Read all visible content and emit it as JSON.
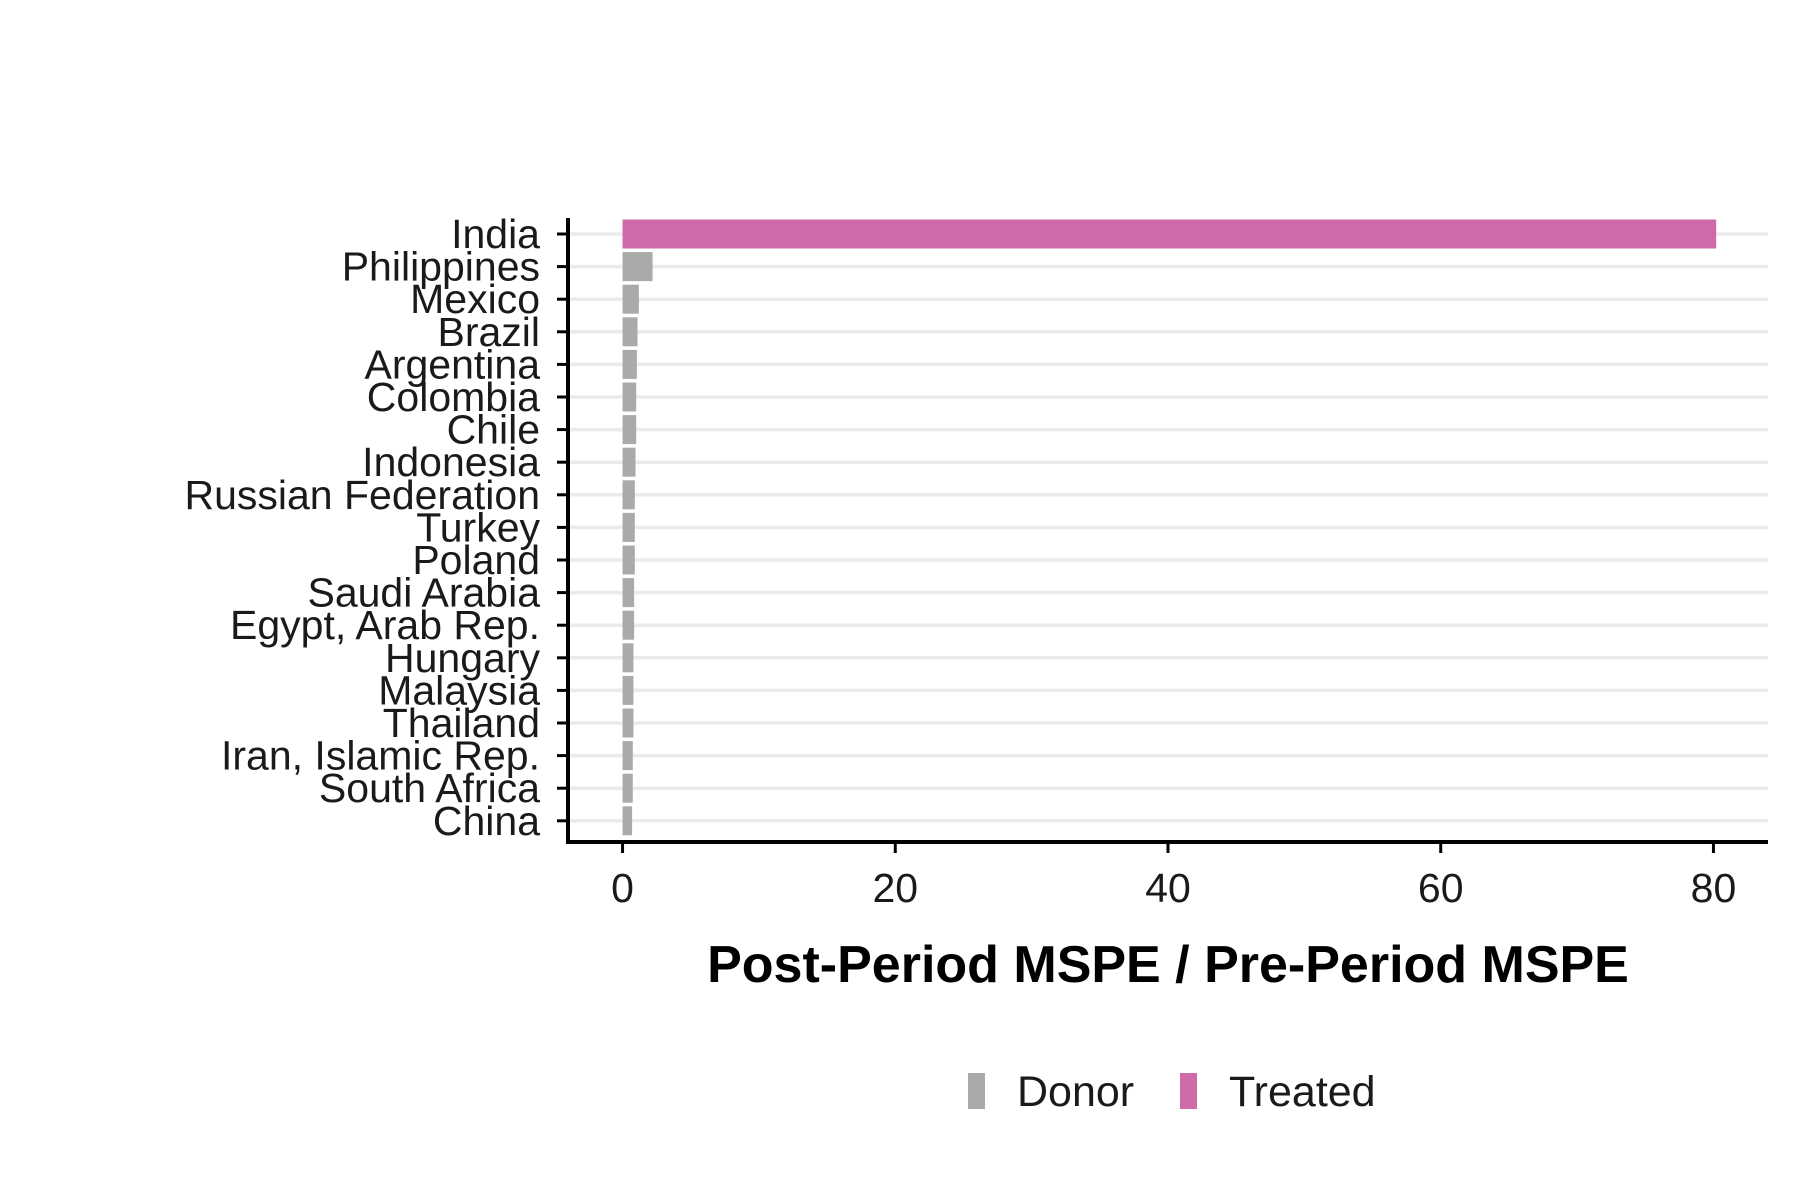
{
  "colors": {
    "donor": "#aaaaaa",
    "treated": "#cf6aa8",
    "gridline": "#ebebeb",
    "axis": "#000000"
  },
  "chart_data": {
    "type": "bar",
    "orientation": "horizontal",
    "title": "",
    "xlabel": "Post-Period MSPE / Pre-Period MSPE",
    "ylabel": "",
    "xlim": [
      -4,
      84
    ],
    "xticks": [
      0,
      20,
      40,
      60,
      80
    ],
    "grid": "horizontal major lines",
    "legend_position": "bottom",
    "legend": [
      {
        "group": "Donor",
        "label": "Donor"
      },
      {
        "group": "Treated",
        "label": "Treated"
      }
    ],
    "categories": [
      "India",
      "Philippines",
      "Mexico",
      "Brazil",
      "Argentina",
      "Colombia",
      "Chile",
      "Indonesia",
      "Russian Federation",
      "Turkey",
      "Poland",
      "Saudi Arabia",
      "Egypt, Arab Rep.",
      "Hungary",
      "Malaysia",
      "Thailand",
      "Iran, Islamic Rep.",
      "South Africa",
      "China"
    ],
    "values": [
      80.2,
      2.2,
      1.2,
      1.1,
      1.05,
      1.0,
      1.0,
      0.95,
      0.9,
      0.9,
      0.9,
      0.85,
      0.85,
      0.8,
      0.8,
      0.8,
      0.75,
      0.75,
      0.7
    ],
    "groups": [
      "Treated",
      "Donor",
      "Donor",
      "Donor",
      "Donor",
      "Donor",
      "Donor",
      "Donor",
      "Donor",
      "Donor",
      "Donor",
      "Donor",
      "Donor",
      "Donor",
      "Donor",
      "Donor",
      "Donor",
      "Donor",
      "Donor"
    ]
  }
}
